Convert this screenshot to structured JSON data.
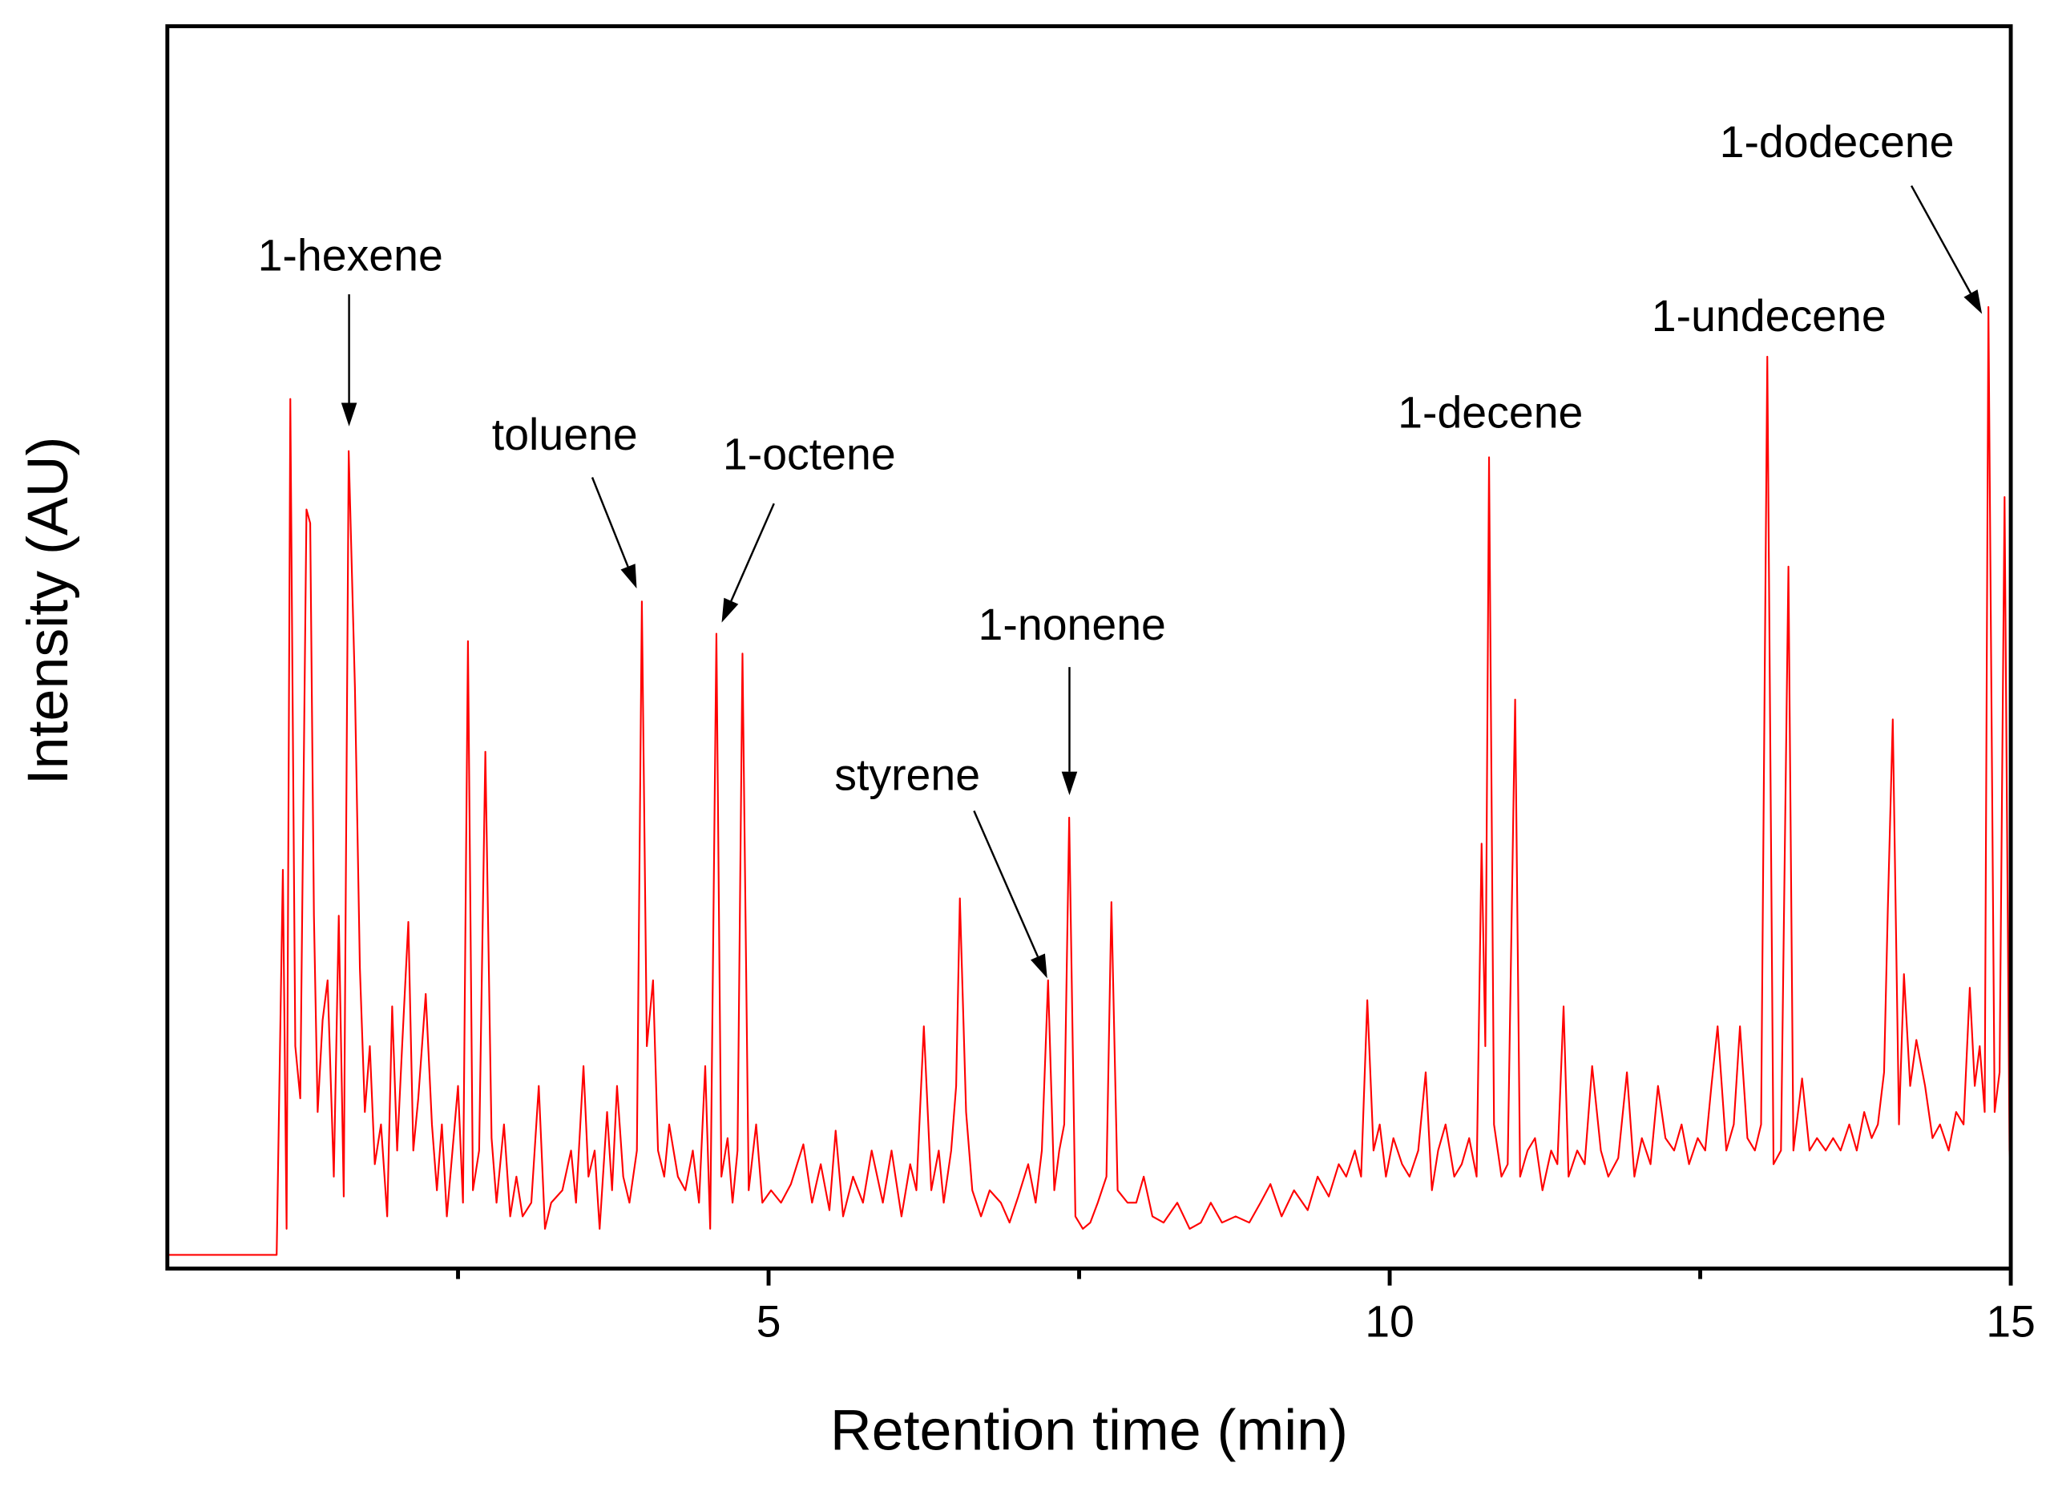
{
  "chart_data": {
    "type": "line",
    "xlabel": "Retention time (min)",
    "ylabel": "Intensity (AU)",
    "xlim": [
      0.16,
      15
    ],
    "xticks": [
      5,
      10,
      15
    ],
    "xminor_ticks": [
      2.5,
      7.5,
      12.5
    ],
    "ylim": [
      0,
      100
    ],
    "annotations": [
      "1-hexene",
      "toluene",
      "1-octene",
      "styrene",
      "1-nonene",
      "1-decene",
      "1-undecene",
      "1-dodecene"
    ],
    "x": [
      0.16,
      1.04,
      1.09,
      1.12,
      1.15,
      1.19,
      1.23,
      1.28,
      1.31,
      1.34,
      1.37,
      1.41,
      1.45,
      1.5,
      1.54,
      1.58,
      1.62,
      1.67,
      1.71,
      1.75,
      1.79,
      1.83,
      1.88,
      1.93,
      1.97,
      2.01,
      2.05,
      2.1,
      2.14,
      2.18,
      2.24,
      2.29,
      2.33,
      2.37,
      2.41,
      2.5,
      2.54,
      2.58,
      2.62,
      2.67,
      2.72,
      2.77,
      2.81,
      2.87,
      2.92,
      2.97,
      3.02,
      3.09,
      3.15,
      3.2,
      3.25,
      3.34,
      3.41,
      3.45,
      3.51,
      3.55,
      3.6,
      3.64,
      3.7,
      3.74,
      3.78,
      3.83,
      3.88,
      3.94,
      3.98,
      4.02,
      4.07,
      4.11,
      4.16,
      4.2,
      4.27,
      4.33,
      4.39,
      4.44,
      4.49,
      4.53,
      4.58,
      4.62,
      4.67,
      4.71,
      4.75,
      4.79,
      4.84,
      4.9,
      4.95,
      5.02,
      5.1,
      5.18,
      5.28,
      5.35,
      5.42,
      5.49,
      5.54,
      5.6,
      5.68,
      5.76,
      5.83,
      5.92,
      5.99,
      6.07,
      6.14,
      6.19,
      6.25,
      6.31,
      6.37,
      6.41,
      6.47,
      6.51,
      6.54,
      6.59,
      6.64,
      6.71,
      6.78,
      6.87,
      6.94,
      7.01,
      7.09,
      7.15,
      7.2,
      7.25,
      7.3,
      7.34,
      7.38,
      7.42,
      7.47,
      7.53,
      7.59,
      7.65,
      7.72,
      7.76,
      7.81,
      7.89,
      7.96,
      8.02,
      8.09,
      8.18,
      8.29,
      8.39,
      8.48,
      8.56,
      8.65,
      8.76,
      8.87,
      8.96,
      9.04,
      9.13,
      9.23,
      9.34,
      9.42,
      9.51,
      9.59,
      9.65,
      9.72,
      9.77,
      9.82,
      9.87,
      9.92,
      9.97,
      10.03,
      10.1,
      10.16,
      10.23,
      10.29,
      10.34,
      10.39,
      10.45,
      10.52,
      10.58,
      10.64,
      10.7,
      10.74,
      10.77,
      10.8,
      10.84,
      10.9,
      10.95,
      11.01,
      11.05,
      11.11,
      11.17,
      11.23,
      11.3,
      11.35,
      11.4,
      11.44,
      11.51,
      11.57,
      11.63,
      11.7,
      11.76,
      11.84,
      11.91,
      11.97,
      12.03,
      12.1,
      12.16,
      12.22,
      12.29,
      12.35,
      12.41,
      12.48,
      12.54,
      12.59,
      12.64,
      12.71,
      12.77,
      12.82,
      12.88,
      12.94,
      12.99,
      13.04,
      13.09,
      13.15,
      13.21,
      13.25,
      13.32,
      13.38,
      13.44,
      13.51,
      13.57,
      13.63,
      13.7,
      13.76,
      13.82,
      13.88,
      13.93,
      13.98,
      14.01,
      14.05,
      14.1,
      14.14,
      14.19,
      14.24,
      14.31,
      14.37,
      14.43,
      14.5,
      14.56,
      14.62,
      14.67,
      14.71,
      14.75,
      14.79,
      14.82,
      14.87,
      14.91,
      14.95,
      14.99,
      15.0
    ],
    "series": [
      {
        "color": "#ff0000",
        "values": [
          1.1,
          1.1,
          32.1,
          3.2,
          70.0,
          17.9,
          13.7,
          61.1,
          60.0,
          28.4,
          12.6,
          20.0,
          23.2,
          7.4,
          28.4,
          5.8,
          65.8,
          46.8,
          24.2,
          12.6,
          17.9,
          8.4,
          11.6,
          4.2,
          21.1,
          9.5,
          17.9,
          27.9,
          9.5,
          13.7,
          22.1,
          11.6,
          6.3,
          11.6,
          4.2,
          14.7,
          5.3,
          50.5,
          6.3,
          9.5,
          41.6,
          10.5,
          5.3,
          11.6,
          4.2,
          7.4,
          4.2,
          5.3,
          14.7,
          3.2,
          5.3,
          6.3,
          9.5,
          5.3,
          16.3,
          7.4,
          9.5,
          3.2,
          12.6,
          6.3,
          14.7,
          7.4,
          5.3,
          9.5,
          53.7,
          17.9,
          23.2,
          9.5,
          7.4,
          11.6,
          7.4,
          6.3,
          9.5,
          5.3,
          16.3,
          3.2,
          51.1,
          7.4,
          10.5,
          5.3,
          9.5,
          49.5,
          6.3,
          11.6,
          5.3,
          6.3,
          5.3,
          6.8,
          10.0,
          5.3,
          8.4,
          4.7,
          11.1,
          4.2,
          7.4,
          5.3,
          9.5,
          5.3,
          9.5,
          4.2,
          8.4,
          6.3,
          19.5,
          6.3,
          9.5,
          5.3,
          9.5,
          14.7,
          29.8,
          12.6,
          6.3,
          4.2,
          6.3,
          5.3,
          3.7,
          5.8,
          8.4,
          5.3,
          9.5,
          23.2,
          6.3,
          9.5,
          11.6,
          36.3,
          4.2,
          3.2,
          3.7,
          5.3,
          7.4,
          29.5,
          6.3,
          5.3,
          5.3,
          7.4,
          4.2,
          3.7,
          5.3,
          3.2,
          3.7,
          5.3,
          3.7,
          4.2,
          3.7,
          5.3,
          6.8,
          4.2,
          6.3,
          4.7,
          7.4,
          5.8,
          8.4,
          7.4,
          9.5,
          7.4,
          21.6,
          9.5,
          11.6,
          7.4,
          10.5,
          8.4,
          7.4,
          9.5,
          15.8,
          6.3,
          9.5,
          11.6,
          7.4,
          8.4,
          10.5,
          7.4,
          34.2,
          17.9,
          65.3,
          11.6,
          7.4,
          8.4,
          45.8,
          7.4,
          9.5,
          10.5,
          6.3,
          9.5,
          8.4,
          21.1,
          7.4,
          9.5,
          8.4,
          16.3,
          9.5,
          7.4,
          8.9,
          15.8,
          7.4,
          10.5,
          8.4,
          14.7,
          10.5,
          9.5,
          11.6,
          8.4,
          10.5,
          9.5,
          14.7,
          19.5,
          9.5,
          11.6,
          19.5,
          10.5,
          9.5,
          11.6,
          73.4,
          8.4,
          9.5,
          56.5,
          9.5,
          15.3,
          9.5,
          10.5,
          9.5,
          10.5,
          9.5,
          11.6,
          9.5,
          12.6,
          10.5,
          11.6,
          15.8,
          28.9,
          44.2,
          11.6,
          23.7,
          14.7,
          18.4,
          14.7,
          10.5,
          11.6,
          9.5,
          12.6,
          11.6,
          22.6,
          14.7,
          17.9,
          12.6,
          77.4,
          12.6,
          15.8,
          62.1,
          9.5,
          7.9
        ]
      }
    ]
  }
}
